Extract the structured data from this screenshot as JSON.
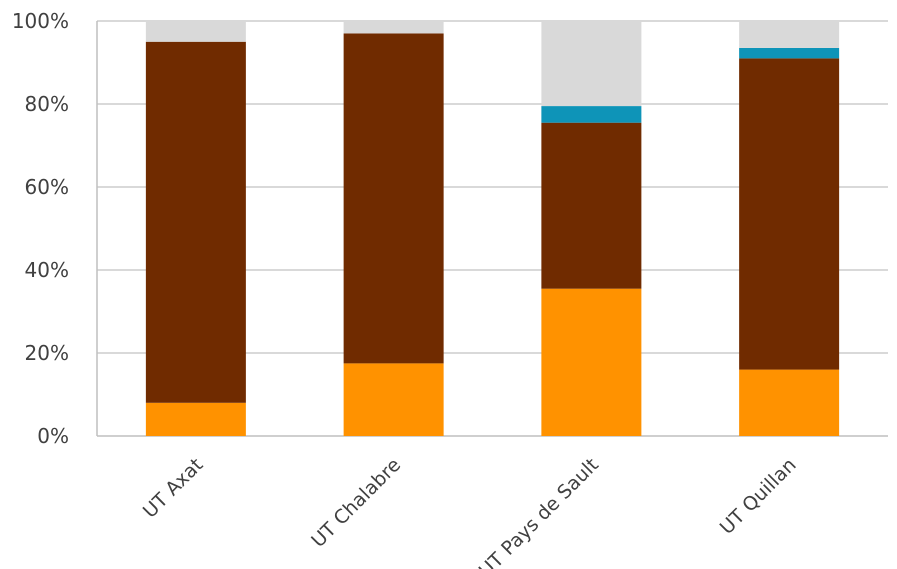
{
  "chart_data": {
    "type": "bar",
    "stacked": true,
    "categories": [
      "UT Axat",
      "UT Chalabre",
      "UT Pays de Sault",
      "UT Quillan"
    ],
    "series": [
      {
        "values": [
          8,
          17.5,
          35.5,
          16
        ],
        "color": "#ff9200"
      },
      {
        "values": [
          87,
          79.5,
          40,
          75
        ],
        "color": "#702b00"
      },
      {
        "values": [
          0,
          0,
          4,
          2.5
        ],
        "color": "#0e94b8"
      },
      {
        "values": [
          5,
          3,
          20.5,
          6.5
        ],
        "color": "#d9d9d9"
      }
    ],
    "y_ticks": [
      "0%",
      "20%",
      "40%",
      "60%",
      "80%",
      "100%"
    ],
    "ylim": [
      0,
      100
    ],
    "grid": true,
    "legend": "none"
  }
}
